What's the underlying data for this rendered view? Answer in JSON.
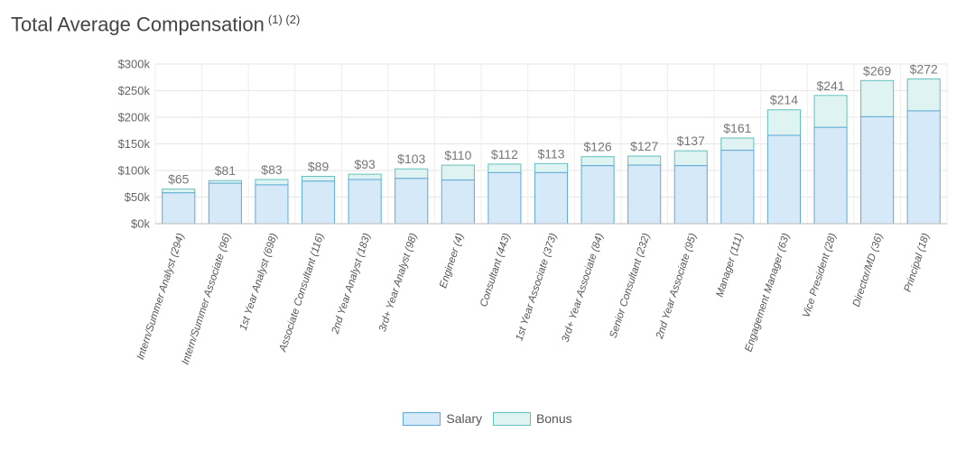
{
  "title": {
    "text": "Total Average Compensation",
    "notes": "(1) (2)"
  },
  "chart_data": {
    "type": "bar",
    "stacked": true,
    "categories": [
      "Intern/Summer Analyst (294)",
      "Intern/Summer Associate (96)",
      "1st Year Analyst (698)",
      "Associate Consultant (116)",
      "2nd Year Analyst (183)",
      "3rd+ Year Analyst (98)",
      "Engineer (4)",
      "Consultant (443)",
      "1st Year Associate (373)",
      "3rd+ Year Associate (84)",
      "Senior Consultant (232)",
      "2nd Year Associate (95)",
      "Manager (111)",
      "Engagement Manager (63)",
      "Vice President (28)",
      "Director/MD (36)",
      "Principal (18)"
    ],
    "series": [
      {
        "name": "Salary",
        "color": "#d6e9f8",
        "stroke": "#5fa9d6",
        "values": [
          58,
          76,
          73,
          80,
          83,
          85,
          82,
          96,
          96,
          109,
          110,
          109,
          138,
          166,
          181,
          201,
          212
        ]
      },
      {
        "name": "Bonus",
        "color": "#dff3f2",
        "stroke": "#62c0bd",
        "values": [
          7,
          5,
          10,
          9,
          10,
          18,
          28,
          16,
          17,
          17,
          17,
          28,
          23,
          48,
          60,
          68,
          60
        ]
      }
    ],
    "data_labels": [
      "$65",
      "$81",
      "$83",
      "$89",
      "$93",
      "$103",
      "$110",
      "$112",
      "$113",
      "$126",
      "$127",
      "$137",
      "$161",
      "$214",
      "$241",
      "$269",
      "$272"
    ],
    "y_ticks": [
      {
        "value": 0,
        "label": "$0k"
      },
      {
        "value": 50,
        "label": "$50k"
      },
      {
        "value": 100,
        "label": "$100k"
      },
      {
        "value": 150,
        "label": "$150k"
      },
      {
        "value": 200,
        "label": "$200k"
      },
      {
        "value": 250,
        "label": "$250k"
      },
      {
        "value": 300,
        "label": "$300k"
      }
    ],
    "ylim": [
      0,
      300
    ],
    "grid": true,
    "legend_position": "bottom-center"
  },
  "legend": {
    "items": [
      {
        "label": "Salary",
        "color": "#d6e9f8"
      },
      {
        "label": "Bonus",
        "color": "#dff3f2"
      }
    ]
  }
}
